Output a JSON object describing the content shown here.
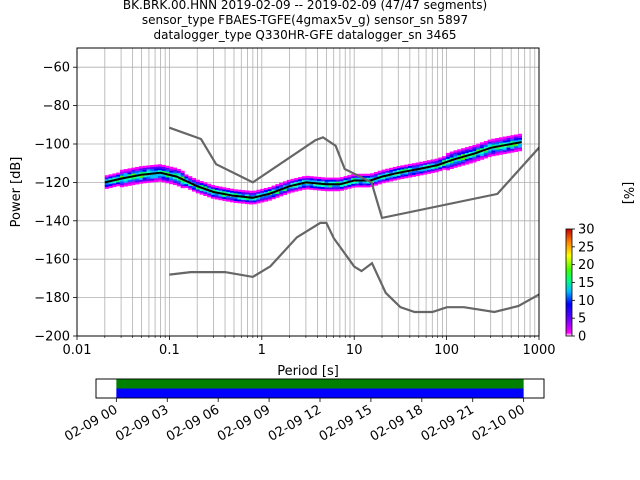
{
  "title_lines": [
    "BK.BRK.00.HNN   2019-02-09 -- 2019-02-09  (47/47 segments)",
    "sensor_type FBAES-TGFE(4gmax5v_g) sensor_sn 5897",
    "datalogger_type Q330HR-GFE datalogger_sn 3465"
  ],
  "chart_data": [
    {
      "type": "heatmap",
      "xlabel": "Period [s]",
      "ylabel": "Power [dB]",
      "x_scale": "log",
      "xlim": [
        0.01,
        1000
      ],
      "ylim": [
        -200,
        -50
      ],
      "x_ticks": [
        0.01,
        0.1,
        1,
        10,
        100,
        1000
      ],
      "x_tick_labels": [
        "0.01",
        "0.1",
        "1",
        "10",
        "100",
        "1000"
      ],
      "y_ticks": [
        -200,
        -180,
        -160,
        -140,
        -120,
        -100,
        -80,
        -60
      ],
      "y_tick_labels": [
        "−200",
        "−180",
        "−160",
        "−140",
        "−120",
        "−100",
        "−80",
        "−60"
      ],
      "grid": true,
      "colorbar": {
        "label": "[%]",
        "range": [
          0,
          30
        ],
        "ticks": [
          0,
          5,
          10,
          15,
          20,
          25,
          30
        ]
      },
      "series": [
        {
          "role": "mode",
          "color": "#000000",
          "x": [
            0.02,
            0.03,
            0.05,
            0.08,
            0.12,
            0.2,
            0.3,
            0.5,
            0.8,
            1.2,
            2,
            3,
            5,
            7,
            10,
            15,
            20,
            30,
            50,
            80,
            120,
            200,
            300,
            500,
            650
          ],
          "y": [
            -120,
            -118,
            -116,
            -115,
            -117,
            -122,
            -125,
            -127,
            -128,
            -126,
            -122,
            -120,
            -121,
            -121,
            -119,
            -119,
            -117,
            -115,
            -113,
            -111,
            -108,
            -105,
            -102,
            -100,
            -99
          ]
        },
        {
          "role": "new_high_noise_model",
          "color": "#666666",
          "x": [
            0.1,
            0.22,
            0.32,
            0.8,
            3.8,
            4.6,
            6.3,
            7.9,
            15.4,
            20,
            354.8,
            10000
          ],
          "y": [
            -91.5,
            -97.4,
            -110.5,
            -120,
            -98,
            -96.5,
            -101,
            -113,
            -120,
            -138.5,
            -126,
            -48.5
          ]
        },
        {
          "role": "new_low_noise_model",
          "color": "#666666",
          "x": [
            0.1,
            0.17,
            0.4,
            0.8,
            1.24,
            2.4,
            4.3,
            5,
            6,
            10,
            12,
            15.6,
            21.9,
            31.6,
            45,
            70,
            101,
            154,
            328,
            600,
            10000
          ],
          "y": [
            -168,
            -166.7,
            -166.7,
            -169.2,
            -163.7,
            -148.6,
            -141.1,
            -141.1,
            -149,
            -163.8,
            -166.2,
            -162.1,
            -177.5,
            -185,
            -187.5,
            -187.5,
            -185,
            -185,
            -187.5,
            -184.4,
            -151.5
          ]
        }
      ]
    },
    {
      "type": "bar",
      "role": "data_coverage",
      "x_tick_labels": [
        "02-09 00",
        "02-09 03",
        "02-09 06",
        "02-09 09",
        "02-09 12",
        "02-09 15",
        "02-09 18",
        "02-09 21",
        "02-10 00"
      ],
      "xlim_hours": [
        -1.2,
        25.2
      ],
      "data_span_hours": [
        0,
        24
      ],
      "series": [
        {
          "role": "top band",
          "color": "#008000"
        },
        {
          "role": "bottom band",
          "color": "#0000ff"
        }
      ]
    }
  ]
}
